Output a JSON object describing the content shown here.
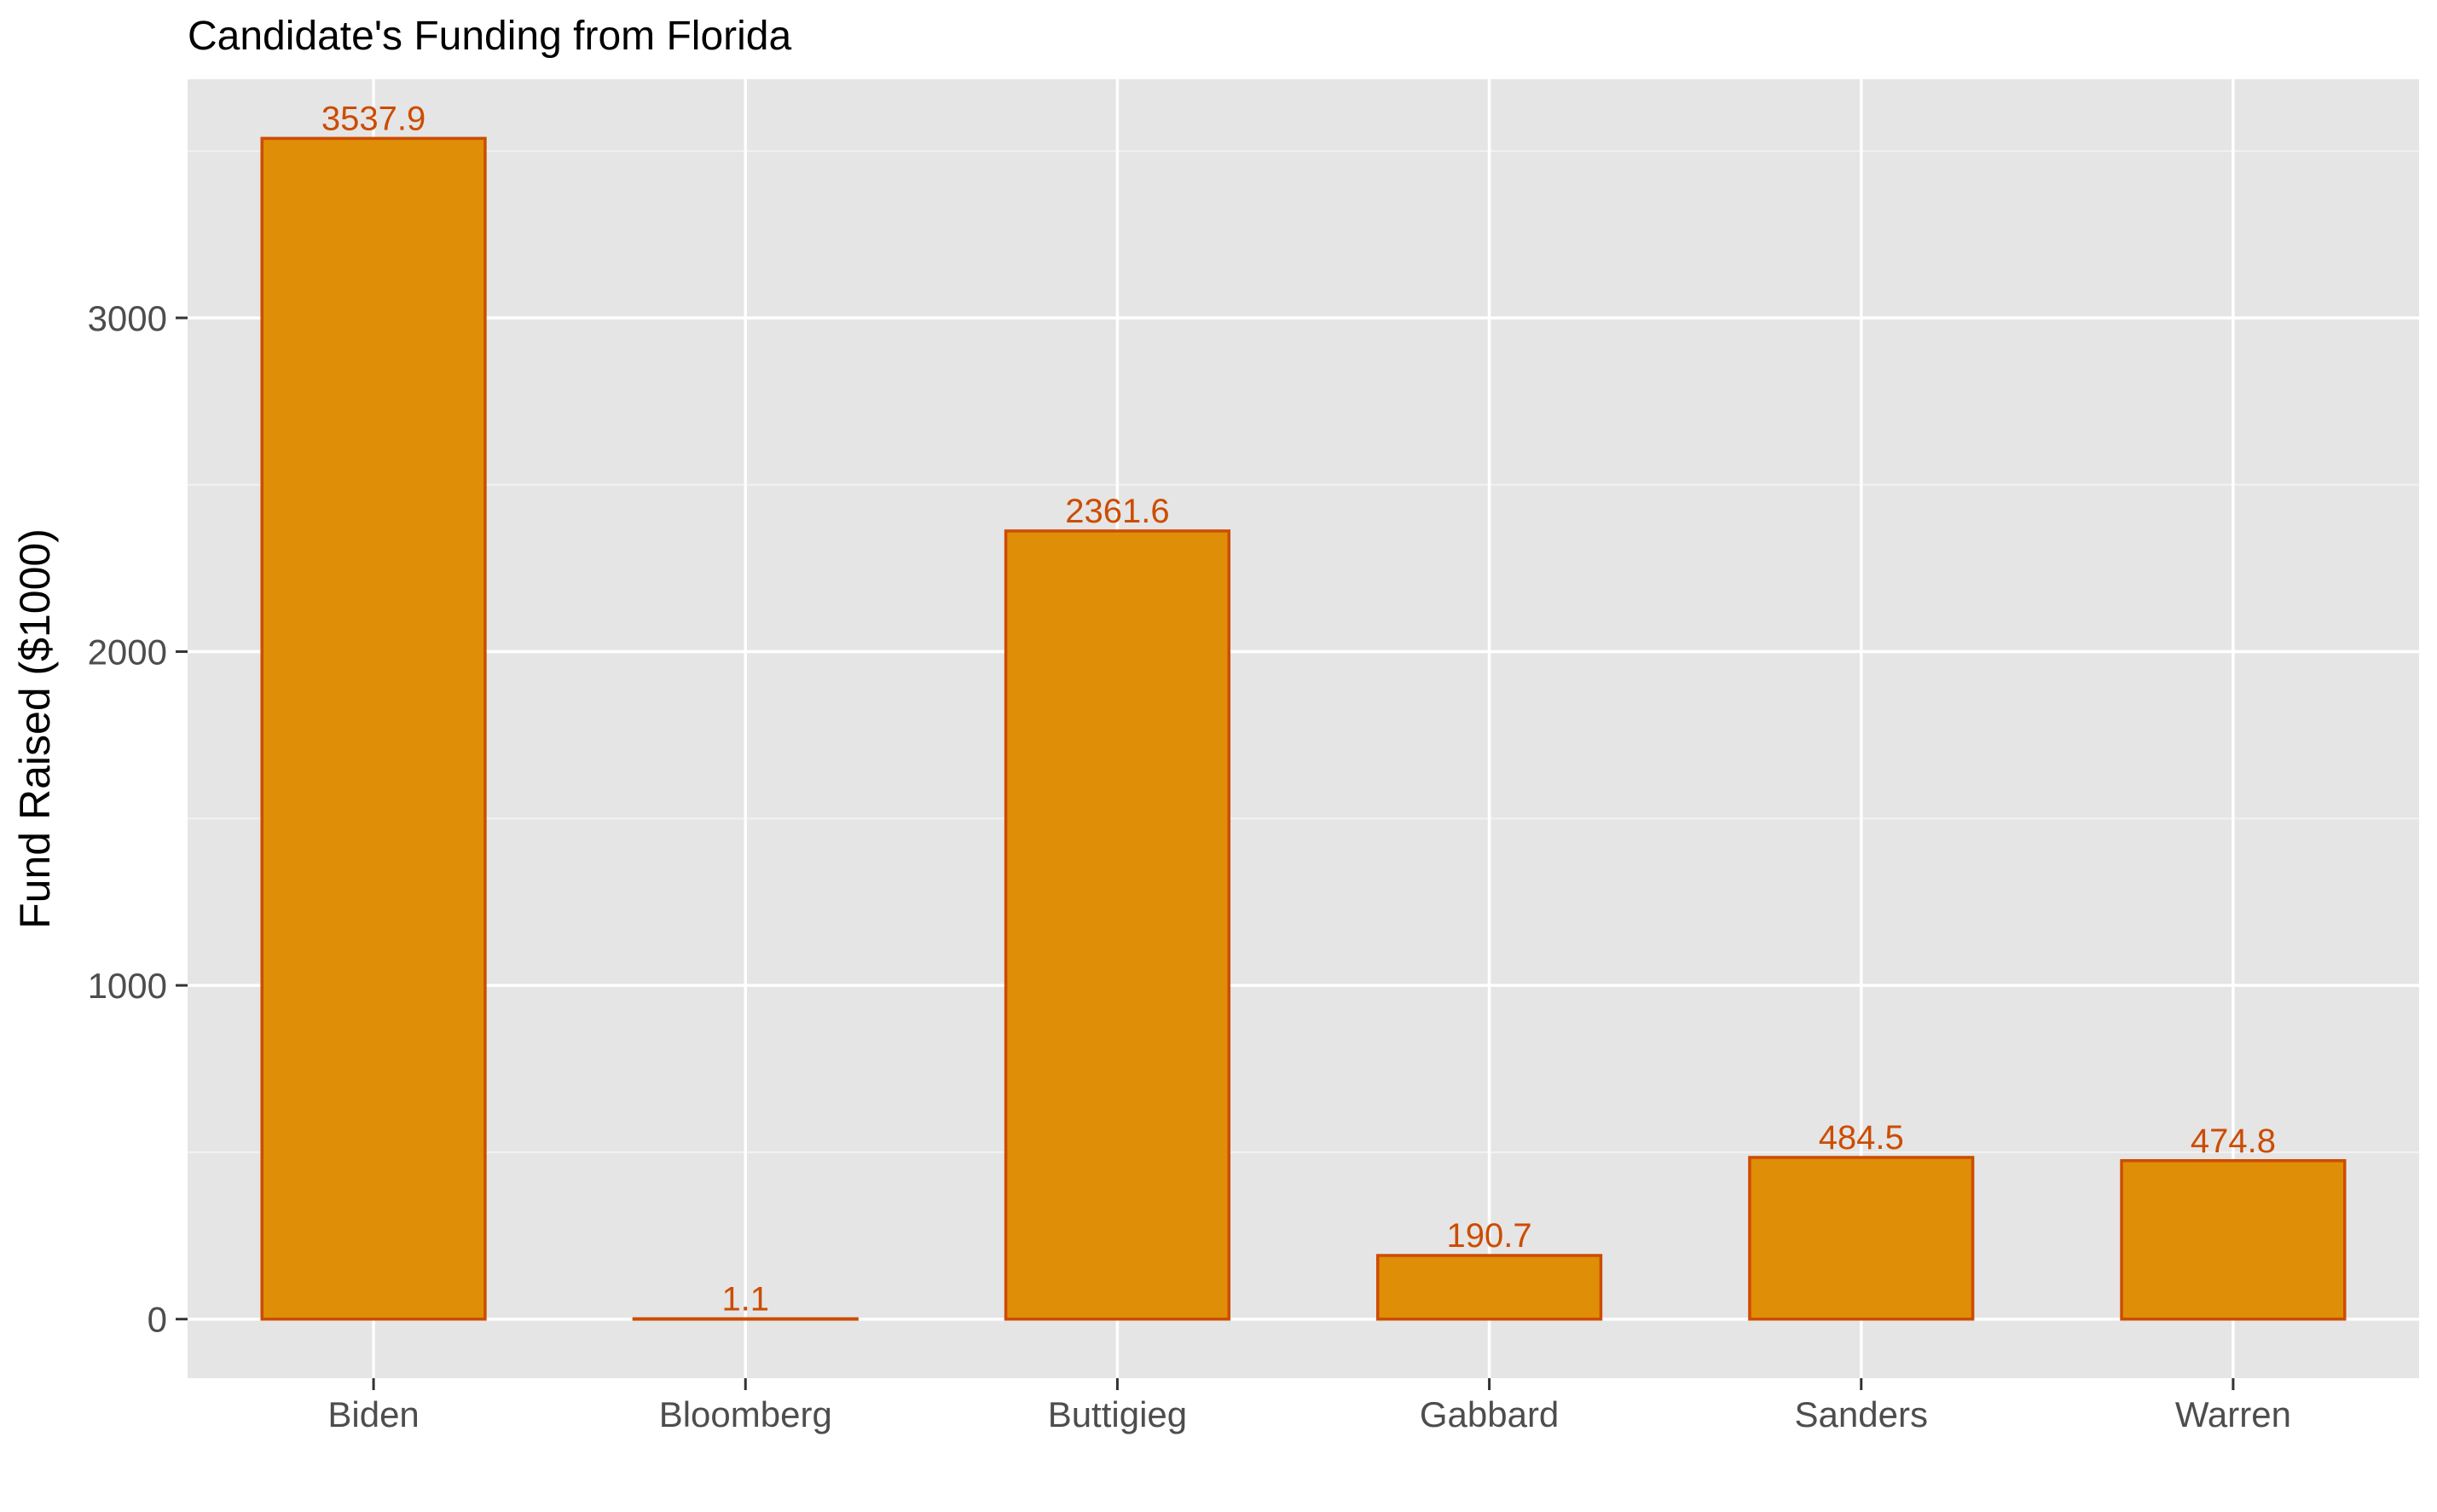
{
  "chart_data": {
    "type": "bar",
    "title": "Candidate's Funding from Florida",
    "xlabel": "",
    "ylabel": "Fund Raised ($1000)",
    "categories": [
      "Biden",
      "Bloomberg",
      "Buttigieg",
      "Gabbard",
      "Sanders",
      "Warren"
    ],
    "values": [
      3537.9,
      1.1,
      2361.6,
      190.7,
      484.5,
      474.8
    ],
    "data_labels": [
      "3537.9",
      "1.1",
      "2361.6",
      "190.7",
      "484.5",
      "474.8"
    ],
    "y_ticks": [
      0,
      1000,
      2000,
      3000
    ],
    "y_tick_labels": [
      "0",
      "1000",
      "2000",
      "3000"
    ],
    "ylim": [
      -177,
      3715
    ],
    "grid": true,
    "legend": "none",
    "colors": {
      "bar_fill": "#DF8E07",
      "bar_stroke": "#CC4C02",
      "data_label": "#CC4C02",
      "panel_background": "#E5E5E5",
      "grid_major": "#FFFFFF",
      "grid_minor": "#F2F2F2",
      "tick_label": "#4D4D4D",
      "tick_mark": "#333333"
    }
  }
}
